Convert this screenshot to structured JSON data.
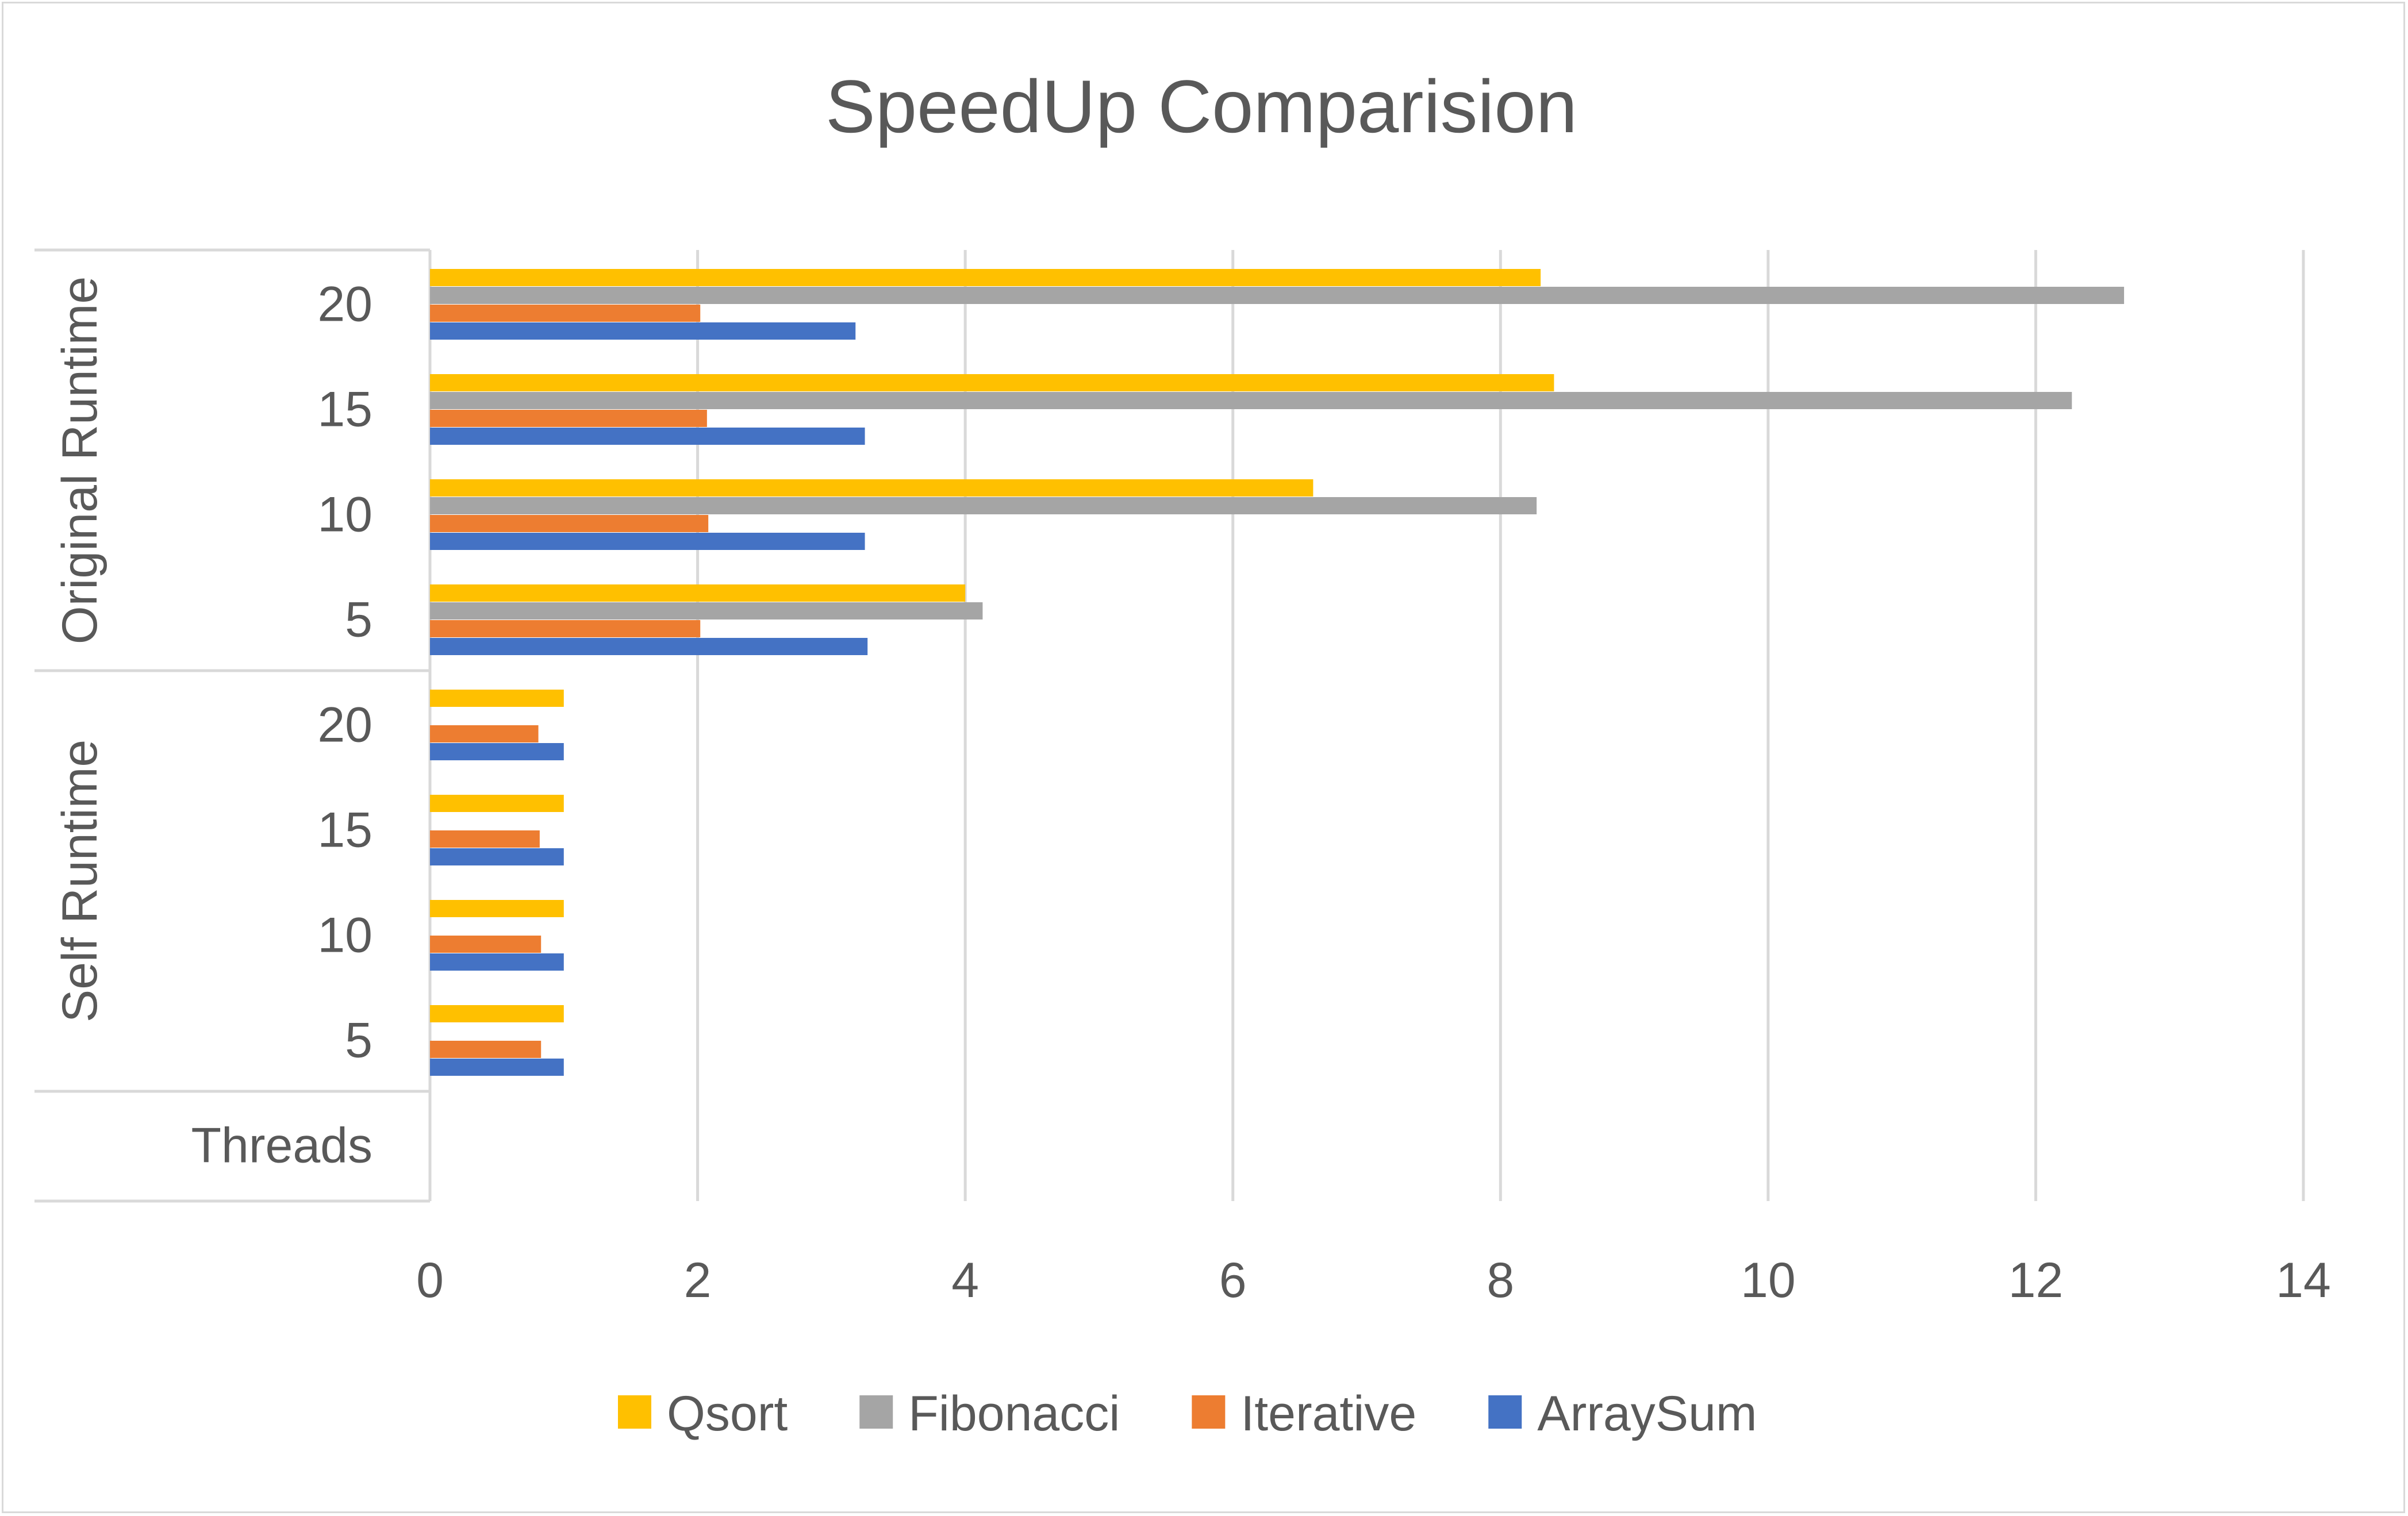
{
  "chart_data": {
    "type": "bar",
    "orientation": "horizontal",
    "title": "SpeedUp Comparision",
    "axis_title": "Threads",
    "groups": [
      {
        "name": "Self Runtime",
        "categories": [
          "5",
          "10",
          "15",
          "20"
        ]
      },
      {
        "name": "Original Runtime",
        "categories": [
          "5",
          "10",
          "15",
          "20"
        ]
      }
    ],
    "series": [
      {
        "name": "ArraySum",
        "color": "#4472c4",
        "values": [
          1.0,
          1.0,
          1.0,
          1.0,
          3.27,
          3.25,
          3.25,
          3.18
        ]
      },
      {
        "name": "Iterative",
        "color": "#ed7d31",
        "values": [
          0.83,
          0.83,
          0.82,
          0.81,
          2.02,
          2.08,
          2.07,
          2.02
        ]
      },
      {
        "name": "Fibonacci",
        "color": "#a5a5a5",
        "values": [
          0.0,
          0.0,
          0.0,
          0.0,
          4.13,
          8.27,
          12.27,
          12.66
        ]
      },
      {
        "name": "Qsort",
        "color": "#ffc000",
        "values": [
          1.0,
          1.0,
          1.0,
          1.0,
          4.0,
          6.6,
          8.4,
          8.3
        ]
      }
    ],
    "legend_order": [
      "Qsort",
      "Fibonacci",
      "Iterative",
      "ArraySum"
    ],
    "xlim": [
      0,
      14
    ],
    "xticks": [
      "0",
      "2",
      "4",
      "6",
      "8",
      "10",
      "12",
      "14"
    ],
    "grid": true,
    "legend_position": "bottom"
  }
}
